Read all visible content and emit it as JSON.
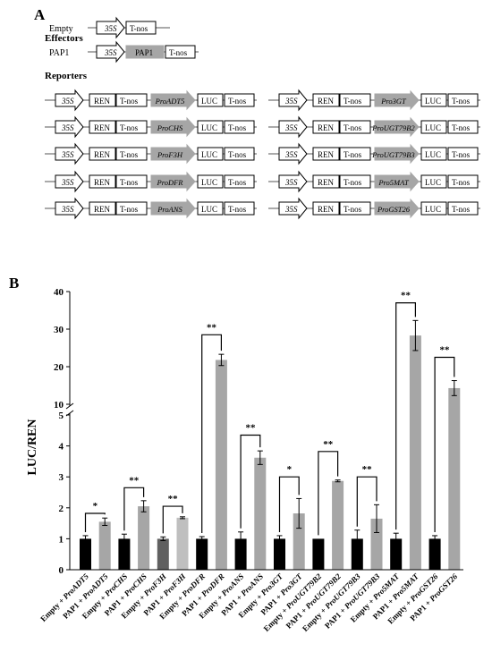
{
  "panel_a": {
    "label": "A",
    "effectors_title": "Effectors",
    "reporters_title": "Reporters",
    "effectors": [
      {
        "name": "Empty",
        "parts": [
          "35S",
          "T-nos"
        ]
      },
      {
        "name": "PAP1",
        "parts": [
          "35S",
          "PAP1",
          "T-nos"
        ]
      }
    ],
    "reporter_common": {
      "promoter": "35S",
      "ren": "REN",
      "tnos": "T-nos",
      "luc": "LUC"
    },
    "reporters_left": [
      "ProADT5",
      "ProCHS",
      "ProF3H",
      "ProDFR",
      "ProANS"
    ],
    "reporters_right": [
      "Pro3GT",
      "ProUGT79B2",
      "ProUGT79B3",
      "Pro5MAT",
      "ProGST26"
    ],
    "colors": {
      "gray_box": "#a6a6a6",
      "arrow_fill": "#a6a6a6"
    }
  },
  "chart_data": {
    "type": "bar",
    "panel_label": "B",
    "ylabel": "LUC/REN",
    "y_axis_broken": true,
    "y_lower_range": [
      0,
      5
    ],
    "y_upper_range": [
      10,
      40
    ],
    "y_lower_ticks": [
      "0",
      "1",
      "2",
      "3",
      "4",
      "5"
    ],
    "y_upper_ticks": [
      "10",
      "20",
      "30",
      "40"
    ],
    "categories": [
      "Empty + ProADT5",
      "PAP1 + ProADT5",
      "Empty + ProCHS",
      "PAP1 + ProCHS",
      "Empty + ProF3H",
      "PAP1 + ProF3H",
      "Empty + ProDFR",
      "PAP1 + ProDFR",
      "Empty + ProANS",
      "PAP1 + ProANS",
      "Empty + Pro3GT",
      "PAP1 + Pro3GT",
      "Empty + ProUGT79B2",
      "PAP1 + ProUGT79B2",
      "Empty + ProUGT79B3",
      "PAP1 + ProUGT79B3",
      "Empty + Pro5MAT",
      "PAP1 + Pro5MAT",
      "Empty + ProGST26",
      "PAP1 + ProGST26"
    ],
    "values": [
      1.0,
      1.55,
      1.0,
      2.05,
      1.0,
      1.68,
      1.0,
      21.8,
      1.0,
      3.62,
      1.0,
      1.82,
      1.0,
      2.87,
      1.0,
      1.65,
      1.0,
      28.3,
      1.0,
      14.3
    ],
    "errors": [
      0.1,
      0.12,
      0.15,
      0.18,
      0.06,
      0.03,
      0.07,
      1.5,
      0.22,
      0.22,
      0.1,
      0.48,
      0.0,
      0.03,
      0.28,
      0.45,
      0.18,
      4.0,
      0.1,
      2.0
    ],
    "bar_colors": [
      "#000000",
      "#a6a6a6",
      "#000000",
      "#a6a6a6",
      "#606060",
      "#bfbfbf",
      "#000000",
      "#a6a6a6",
      "#000000",
      "#a6a6a6",
      "#000000",
      "#a6a6a6",
      "#000000",
      "#a6a6a6",
      "#000000",
      "#a6a6a6",
      "#000000",
      "#a6a6a6",
      "#000000",
      "#a6a6a6"
    ],
    "significance": [
      "*",
      "**",
      "**",
      "**",
      "**",
      "*",
      "**",
      "**",
      "**",
      "**"
    ],
    "significance_bracket_tops": [
      1.82,
      2.65,
      2.05,
      28.5,
      4.35,
      3.0,
      3.82,
      3.0,
      37.0,
      22.5
    ]
  }
}
